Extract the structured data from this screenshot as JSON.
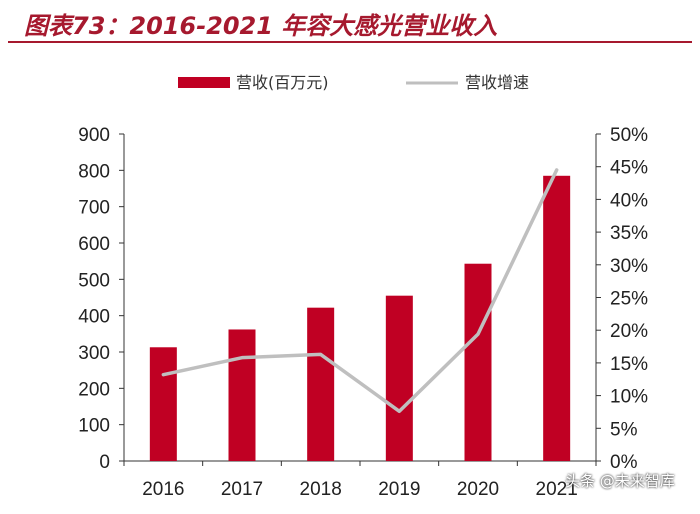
{
  "title": "图表73：2016-2021 年容大感光营业收入",
  "watermark": "头条 @未来智库",
  "colors": {
    "bar": "#c00023",
    "line": "#bfbfbf",
    "title": "#a6192e",
    "axis": "#333333"
  },
  "chart_data": {
    "type": "bar",
    "categories": [
      "2016",
      "2017",
      "2018",
      "2019",
      "2020",
      "2021"
    ],
    "series": [
      {
        "name": "营收(百万元)",
        "type": "bar",
        "axis": "left",
        "values": [
          313,
          362,
          422,
          455,
          543,
          785
        ]
      },
      {
        "name": "营收增速",
        "type": "line",
        "axis": "right",
        "values": [
          13.2,
          15.8,
          16.3,
          7.6,
          19.4,
          44.5
        ]
      }
    ],
    "y_left": {
      "min": 0,
      "max": 900,
      "step": 100,
      "ticks": [
        "0",
        "100",
        "200",
        "300",
        "400",
        "500",
        "600",
        "700",
        "800",
        "900"
      ]
    },
    "y_right": {
      "min": 0,
      "max": 50,
      "step": 5,
      "ticks": [
        "0%",
        "5%",
        "10%",
        "15%",
        "20%",
        "25%",
        "30%",
        "35%",
        "40%",
        "45%",
        "50%"
      ]
    },
    "grid": false,
    "legend": "top"
  }
}
